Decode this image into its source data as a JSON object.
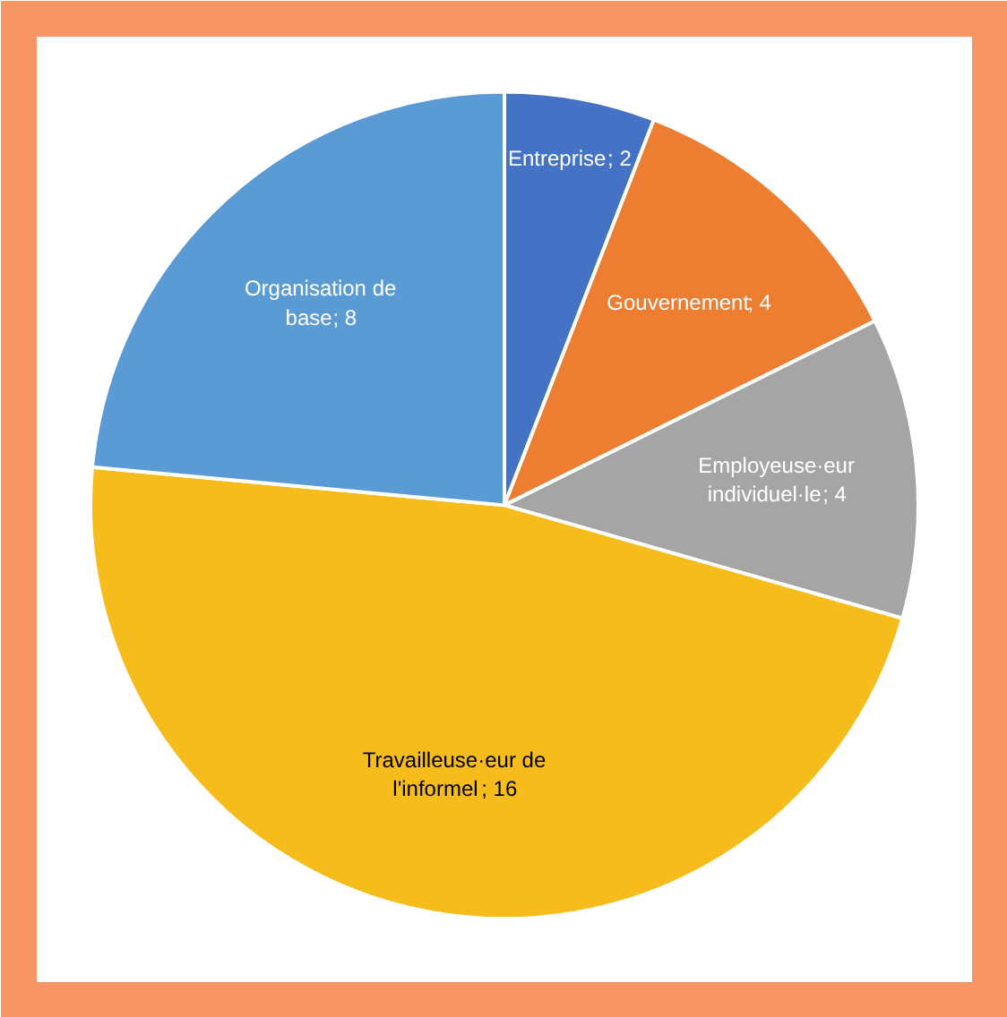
{
  "chart_data": {
    "type": "pie",
    "categories": [
      "Entreprise",
      "Gouvernement",
      "Employeuse·eur individuel·le",
      "Travailleuse·eur de l'informel",
      "Organisation de base"
    ],
    "values": [
      2,
      4,
      4,
      16,
      8
    ],
    "colors": [
      "#4472c4",
      "#ed7d31",
      "#a5a5a5",
      "#f5bc1c",
      "#5b9bd5"
    ],
    "value_labels": [
      "; 2",
      "; 4",
      "; 4",
      "; 16",
      "; 8"
    ]
  }
}
